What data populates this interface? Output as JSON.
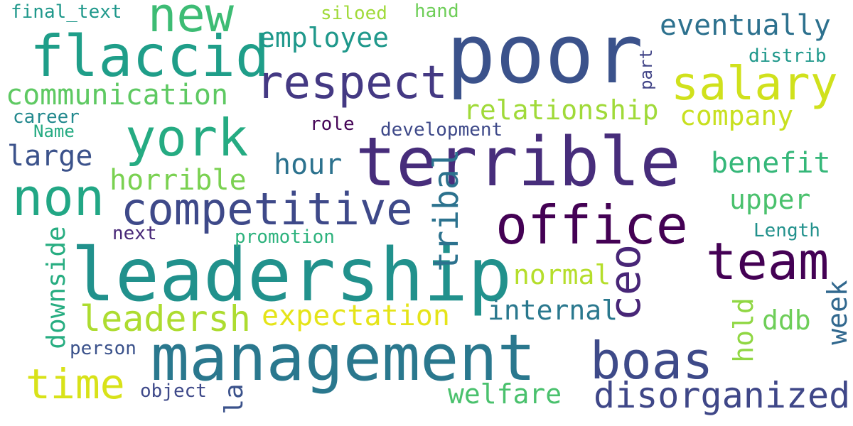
{
  "words": [
    {
      "text": "poor",
      "color": "#3b528b",
      "rotated": false
    },
    {
      "text": "terrible",
      "color": "#472d7b",
      "rotated": false
    },
    {
      "text": "leadership",
      "color": "#21918c",
      "rotated": false
    },
    {
      "text": "management",
      "color": "#2a788e",
      "rotated": false
    },
    {
      "text": "office",
      "color": "#440154",
      "rotated": false
    },
    {
      "text": "flaccid",
      "color": "#1f9e89",
      "rotated": false
    },
    {
      "text": "york",
      "color": "#25ab82",
      "rotated": false
    },
    {
      "text": "non",
      "color": "#22a785",
      "rotated": false
    },
    {
      "text": "competitive",
      "color": "#3e4989",
      "rotated": false
    },
    {
      "text": "respect",
      "color": "#443983",
      "rotated": false
    },
    {
      "text": "team",
      "color": "#440154",
      "rotated": false
    },
    {
      "text": "boas",
      "color": "#3e4a89",
      "rotated": false
    },
    {
      "text": "salary",
      "color": "#d0e11c",
      "rotated": false
    },
    {
      "text": "new",
      "color": "#3dbc74",
      "rotated": false
    },
    {
      "text": "ceo",
      "color": "#482677",
      "rotated": true
    },
    {
      "text": "disorganized",
      "color": "#3f4788",
      "rotated": false
    },
    {
      "text": "time",
      "color": "#d8e219",
      "rotated": false
    },
    {
      "text": "leadersh",
      "color": "#addc30",
      "rotated": false
    },
    {
      "text": "tribal",
      "color": "#2c728e",
      "rotated": true
    },
    {
      "text": "communication",
      "color": "#5ec962",
      "rotated": false
    },
    {
      "text": "eventually",
      "color": "#2d718e",
      "rotated": false
    },
    {
      "text": "expectation",
      "color": "#e5e419",
      "rotated": false
    },
    {
      "text": "relationship",
      "color": "#a0da39",
      "rotated": false
    },
    {
      "text": "employee",
      "color": "#1f988b",
      "rotated": false
    },
    {
      "text": "horrible",
      "color": "#7ad151",
      "rotated": false
    },
    {
      "text": "company",
      "color": "#c8e020",
      "rotated": false
    },
    {
      "text": "benefit",
      "color": "#35b779",
      "rotated": false
    },
    {
      "text": "internal",
      "color": "#2a788e",
      "rotated": false
    },
    {
      "text": "welfare",
      "color": "#4ac16d",
      "rotated": false
    },
    {
      "text": "downside",
      "color": "#27ad81",
      "rotated": true
    },
    {
      "text": "large",
      "color": "#3b528b",
      "rotated": false
    },
    {
      "text": "normal",
      "color": "#b5de2b",
      "rotated": false
    },
    {
      "text": "hour",
      "color": "#2c728e",
      "rotated": false
    },
    {
      "text": "upper",
      "color": "#4ac16d",
      "rotated": false
    },
    {
      "text": "week",
      "color": "#31688e",
      "rotated": true
    },
    {
      "text": "hold",
      "color": "#90d743",
      "rotated": true
    },
    {
      "text": "ddb",
      "color": "#6ece58",
      "rotated": false
    },
    {
      "text": "la",
      "color": "#3b528b",
      "rotated": true
    },
    {
      "text": "development",
      "color": "#3e4989",
      "rotated": false
    },
    {
      "text": "promotion",
      "color": "#2db27d",
      "rotated": false
    },
    {
      "text": "person",
      "color": "#3b528b",
      "rotated": false
    },
    {
      "text": "object",
      "color": "#3e4989",
      "rotated": false
    },
    {
      "text": "final_text",
      "color": "#1f988b",
      "rotated": false
    },
    {
      "text": "siloed",
      "color": "#a0da39",
      "rotated": false
    },
    {
      "text": "hand",
      "color": "#6ece58",
      "rotated": false
    },
    {
      "text": "distrib",
      "color": "#1f988b",
      "rotated": false
    },
    {
      "text": "part",
      "color": "#414487",
      "rotated": true
    },
    {
      "text": "role",
      "color": "#450457",
      "rotated": false
    },
    {
      "text": "career",
      "color": "#23898e",
      "rotated": false
    },
    {
      "text": "Name",
      "color": "#25ab82",
      "rotated": false
    },
    {
      "text": "next",
      "color": "#482878",
      "rotated": false
    },
    {
      "text": "Length",
      "color": "#21918c",
      "rotated": false
    }
  ]
}
